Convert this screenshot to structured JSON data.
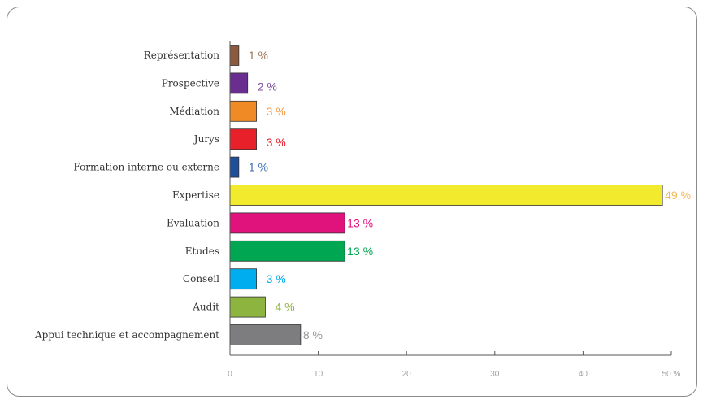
{
  "chart_data": {
    "type": "bar",
    "orientation": "horizontal",
    "title": "",
    "xlabel": "",
    "ylabel": "",
    "xlim": [
      0,
      50
    ],
    "x_unit": "%",
    "ticks": [
      "0",
      "10",
      "20",
      "30",
      "40",
      "50 %"
    ],
    "tick_values": [
      0,
      10,
      20,
      30,
      40,
      50
    ],
    "grid": false,
    "legend": "none",
    "categories": [
      "Représentation",
      "Prospective",
      "Médiation",
      "Jurys",
      "Formation interne ou externe",
      "Expertise",
      "Evaluation",
      "Etudes",
      "Conseil",
      "Audit",
      "Appui technique et accompagnement"
    ],
    "values": [
      1,
      2,
      3,
      3,
      1,
      49,
      13,
      13,
      3,
      4,
      8
    ],
    "value_labels": [
      "1 %",
      "2 %",
      "3 %",
      "3 %",
      "1 %",
      "49 %",
      "13 %",
      "13 %",
      "3 %",
      "4 %",
      "8 %"
    ],
    "bar_colors": [
      "#8c5a3c",
      "#6a2e91",
      "#f08a24",
      "#e8202a",
      "#1f4e9a",
      "#f2ea2c",
      "#e0127c",
      "#00a651",
      "#00aeef",
      "#8db43e",
      "#7d7d7f"
    ],
    "label_colors": [
      "#a0714f",
      "#7d4ea0",
      "#f39a45",
      "#e8202a",
      "#3d6fb5",
      "#f3b95a",
      "#e0127c",
      "#00a651",
      "#00aeef",
      "#8db43e",
      "#9a9a9a"
    ]
  }
}
